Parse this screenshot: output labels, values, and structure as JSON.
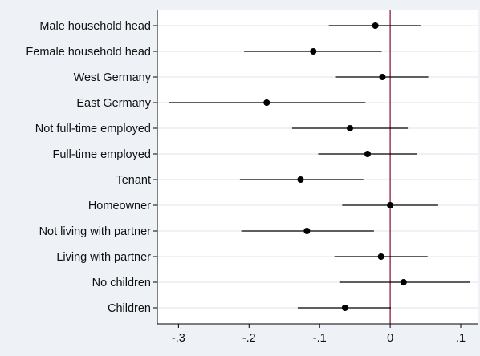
{
  "chart_data": {
    "type": "scatter",
    "title": "",
    "xlabel": "",
    "ylabel": "",
    "xlim": [
      -0.33,
      0.125
    ],
    "x_ticks": [
      {
        "value": -0.3,
        "label": "-.3"
      },
      {
        "value": -0.2,
        "label": "-.2"
      },
      {
        "value": -0.1,
        "label": "-.1"
      },
      {
        "value": 0.0,
        "label": "0"
      },
      {
        "value": 0.1,
        "label": ".1"
      }
    ],
    "reference_line": 0,
    "grid": "horizontal",
    "categories": [
      "Male household head",
      "Female household head",
      "West Germany",
      "East Germany",
      "Not full-time employed",
      "Full-time employed",
      "Tenant",
      "Homeowner",
      "Not living with partner",
      "Living with partner",
      "No children",
      "Children"
    ],
    "estimates": [
      -0.021,
      -0.109,
      -0.011,
      -0.175,
      -0.057,
      -0.032,
      -0.127,
      0.0,
      -0.118,
      -0.013,
      0.019,
      -0.064
    ],
    "ci_low": [
      -0.087,
      -0.207,
      -0.078,
      -0.313,
      -0.139,
      -0.102,
      -0.213,
      -0.068,
      -0.211,
      -0.079,
      -0.072,
      -0.131
    ],
    "ci_high": [
      0.043,
      -0.012,
      0.054,
      -0.035,
      0.025,
      0.038,
      -0.038,
      0.068,
      -0.023,
      0.053,
      0.113,
      0.001
    ]
  },
  "colors": {
    "background": "#eef2f6",
    "plot_background": "#ffffff",
    "gridline": "#e4e9ee",
    "marker": "#000000",
    "ci_line": "#000000",
    "reference_line": "#8b1f3a",
    "axis": "#000000",
    "text": "#111111"
  }
}
